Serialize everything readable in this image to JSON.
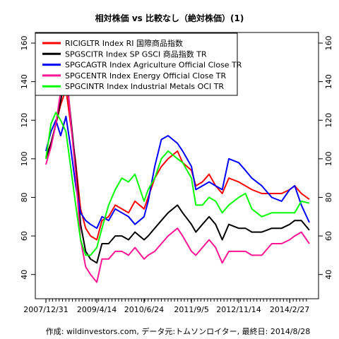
{
  "chart_data": {
    "type": "line",
    "title": "相対株価 vs 比較なし（絶対株価）(1)",
    "caption": "作成: wildinvestors.com, データ元:トムソンロイター, 最終日: 2014/8/28",
    "x_tick_labels": [
      "2007/12/31",
      "2009/4/14",
      "2010/6/24",
      "2011/9/5",
      "2012/11/14",
      "2014/2/27"
    ],
    "x_dates": [
      "2007-12-31",
      "2009-04-14",
      "2010-06-24",
      "2011-09-05",
      "2012-11-14",
      "2014-02-27",
      "2014-08-28"
    ],
    "ylim": [
      30,
      162
    ],
    "y_ticks": [
      40,
      60,
      80,
      100,
      120,
      140,
      160
    ],
    "y_axis_sides": "both",
    "grid": false,
    "legend_placement": "top-left",
    "series": [
      {
        "name": "RICIGLTR Index RI 国際商品指数",
        "color": "#ff0000",
        "x": [
          "2007-12-31",
          "2008-02-15",
          "2008-04-01",
          "2008-05-15",
          "2008-07-03",
          "2008-08-15",
          "2008-10-01",
          "2008-11-15",
          "2009-01-01",
          "2009-02-15",
          "2009-04-14",
          "2009-06-01",
          "2009-08-01",
          "2009-10-01",
          "2009-12-01",
          "2010-02-01",
          "2010-04-01",
          "2010-06-24",
          "2010-08-01",
          "2010-10-01",
          "2010-12-01",
          "2011-02-01",
          "2011-04-29",
          "2011-06-15",
          "2011-09-05",
          "2011-10-15",
          "2011-12-15",
          "2012-02-15",
          "2012-04-15",
          "2012-06-15",
          "2012-08-15",
          "2012-11-14",
          "2013-01-15",
          "2013-03-15",
          "2013-06-15",
          "2013-09-15",
          "2013-12-15",
          "2014-02-27",
          "2014-04-15",
          "2014-06-15",
          "2014-08-28"
        ],
        "y": [
          101,
          108,
          118,
          128,
          136,
          118,
          98,
          74,
          64,
          60,
          58,
          68,
          70,
          76,
          74,
          72,
          78,
          74,
          80,
          90,
          96,
          100,
          104,
          98,
          94,
          86,
          88,
          92,
          86,
          82,
          90,
          88,
          86,
          84,
          82,
          82,
          82,
          84,
          86,
          82,
          79
        ]
      },
      {
        "name": "SPGSCITR Index SP GSCI 商品指数 TR",
        "color": "#000000",
        "x": [
          "2007-12-31",
          "2008-02-15",
          "2008-04-01",
          "2008-05-15",
          "2008-07-03",
          "2008-08-15",
          "2008-10-01",
          "2008-11-15",
          "2009-01-01",
          "2009-02-15",
          "2009-04-14",
          "2009-06-01",
          "2009-08-01",
          "2009-10-01",
          "2009-12-01",
          "2010-02-01",
          "2010-04-01",
          "2010-06-24",
          "2010-08-01",
          "2010-10-01",
          "2010-12-01",
          "2011-02-01",
          "2011-04-29",
          "2011-06-15",
          "2011-09-05",
          "2011-10-15",
          "2011-12-15",
          "2012-02-15",
          "2012-04-15",
          "2012-06-15",
          "2012-08-15",
          "2012-11-14",
          "2013-01-15",
          "2013-03-15",
          "2013-06-15",
          "2013-09-15",
          "2013-12-15",
          "2014-02-27",
          "2014-04-15",
          "2014-06-15",
          "2014-08-28"
        ],
        "y": [
          100,
          108,
          118,
          130,
          145,
          122,
          96,
          66,
          52,
          48,
          46,
          56,
          56,
          60,
          60,
          58,
          62,
          58,
          60,
          64,
          68,
          72,
          76,
          72,
          66,
          62,
          66,
          70,
          66,
          58,
          66,
          64,
          64,
          62,
          62,
          64,
          64,
          66,
          68,
          68,
          63
        ]
      },
      {
        "name": "SPGCAGTR Index Agriculture Official Close TR",
        "color": "#0000ff",
        "x": [
          "2007-12-31",
          "2008-02-15",
          "2008-04-01",
          "2008-05-15",
          "2008-07-03",
          "2008-08-15",
          "2008-10-01",
          "2008-11-15",
          "2009-01-01",
          "2009-02-15",
          "2009-04-14",
          "2009-06-01",
          "2009-08-01",
          "2009-10-01",
          "2009-12-01",
          "2010-02-01",
          "2010-04-01",
          "2010-06-24",
          "2010-08-01",
          "2010-10-01",
          "2010-12-01",
          "2011-02-01",
          "2011-04-29",
          "2011-06-15",
          "2011-09-05",
          "2011-10-15",
          "2011-12-15",
          "2012-02-15",
          "2012-04-15",
          "2012-06-15",
          "2012-08-15",
          "2012-11-14",
          "2013-01-15",
          "2013-03-15",
          "2013-06-15",
          "2013-09-15",
          "2013-12-15",
          "2014-02-27",
          "2014-04-15",
          "2014-06-15",
          "2014-08-28"
        ],
        "y": [
          104,
          114,
          120,
          112,
          122,
          106,
          86,
          72,
          68,
          66,
          64,
          70,
          68,
          74,
          72,
          70,
          66,
          70,
          78,
          96,
          110,
          112,
          108,
          104,
          96,
          84,
          86,
          88,
          86,
          84,
          100,
          98,
          94,
          90,
          86,
          80,
          78,
          84,
          86,
          76,
          67
        ]
      },
      {
        "name": "SPGCENTR Index Energy Official Close TR",
        "color": "#ff1493",
        "x": [
          "2007-12-31",
          "2008-02-15",
          "2008-04-01",
          "2008-05-15",
          "2008-07-03",
          "2008-08-15",
          "2008-10-01",
          "2008-11-15",
          "2009-01-01",
          "2009-02-15",
          "2009-04-14",
          "2009-06-01",
          "2009-08-01",
          "2009-10-01",
          "2009-12-01",
          "2010-02-01",
          "2010-04-01",
          "2010-06-24",
          "2010-08-01",
          "2010-10-01",
          "2010-12-01",
          "2011-02-01",
          "2011-04-29",
          "2011-06-15",
          "2011-09-05",
          "2011-10-15",
          "2011-12-15",
          "2012-02-15",
          "2012-04-15",
          "2012-06-15",
          "2012-08-15",
          "2012-11-14",
          "2013-01-15",
          "2013-03-15",
          "2013-06-15",
          "2013-09-15",
          "2013-12-15",
          "2014-02-27",
          "2014-04-15",
          "2014-06-15",
          "2014-08-28"
        ],
        "y": [
          97,
          106,
          118,
          135,
          150,
          120,
          92,
          58,
          44,
          40,
          36,
          48,
          48,
          52,
          52,
          50,
          54,
          48,
          50,
          52,
          56,
          60,
          64,
          60,
          52,
          50,
          54,
          58,
          54,
          46,
          52,
          52,
          52,
          50,
          50,
          56,
          56,
          58,
          60,
          62,
          56
        ]
      },
      {
        "name": "SPGCINTR Index Industrial Metals OCI TR",
        "color": "#00ff00",
        "x": [
          "2007-12-31",
          "2008-02-15",
          "2008-04-01",
          "2008-05-15",
          "2008-07-03",
          "2008-08-15",
          "2008-10-01",
          "2008-11-15",
          "2009-01-01",
          "2009-02-15",
          "2009-04-14",
          "2009-06-01",
          "2009-08-01",
          "2009-10-01",
          "2009-12-01",
          "2010-02-01",
          "2010-04-01",
          "2010-06-24",
          "2010-08-01",
          "2010-10-01",
          "2010-12-01",
          "2011-02-01",
          "2011-04-29",
          "2011-06-15",
          "2011-09-05",
          "2011-10-15",
          "2011-12-15",
          "2012-02-15",
          "2012-04-15",
          "2012-06-15",
          "2012-08-15",
          "2012-11-14",
          "2013-01-15",
          "2013-03-15",
          "2013-06-15",
          "2013-09-15",
          "2013-12-15",
          "2014-02-27",
          "2014-04-15",
          "2014-06-15",
          "2014-08-28"
        ],
        "y": [
          100,
          118,
          124,
          120,
          114,
          96,
          76,
          58,
          50,
          50,
          54,
          64,
          76,
          84,
          90,
          88,
          92,
          78,
          84,
          90,
          100,
          104,
          100,
          98,
          90,
          76,
          76,
          80,
          78,
          72,
          76,
          80,
          82,
          74,
          70,
          72,
          72,
          72,
          72,
          78,
          77
        ]
      }
    ]
  }
}
